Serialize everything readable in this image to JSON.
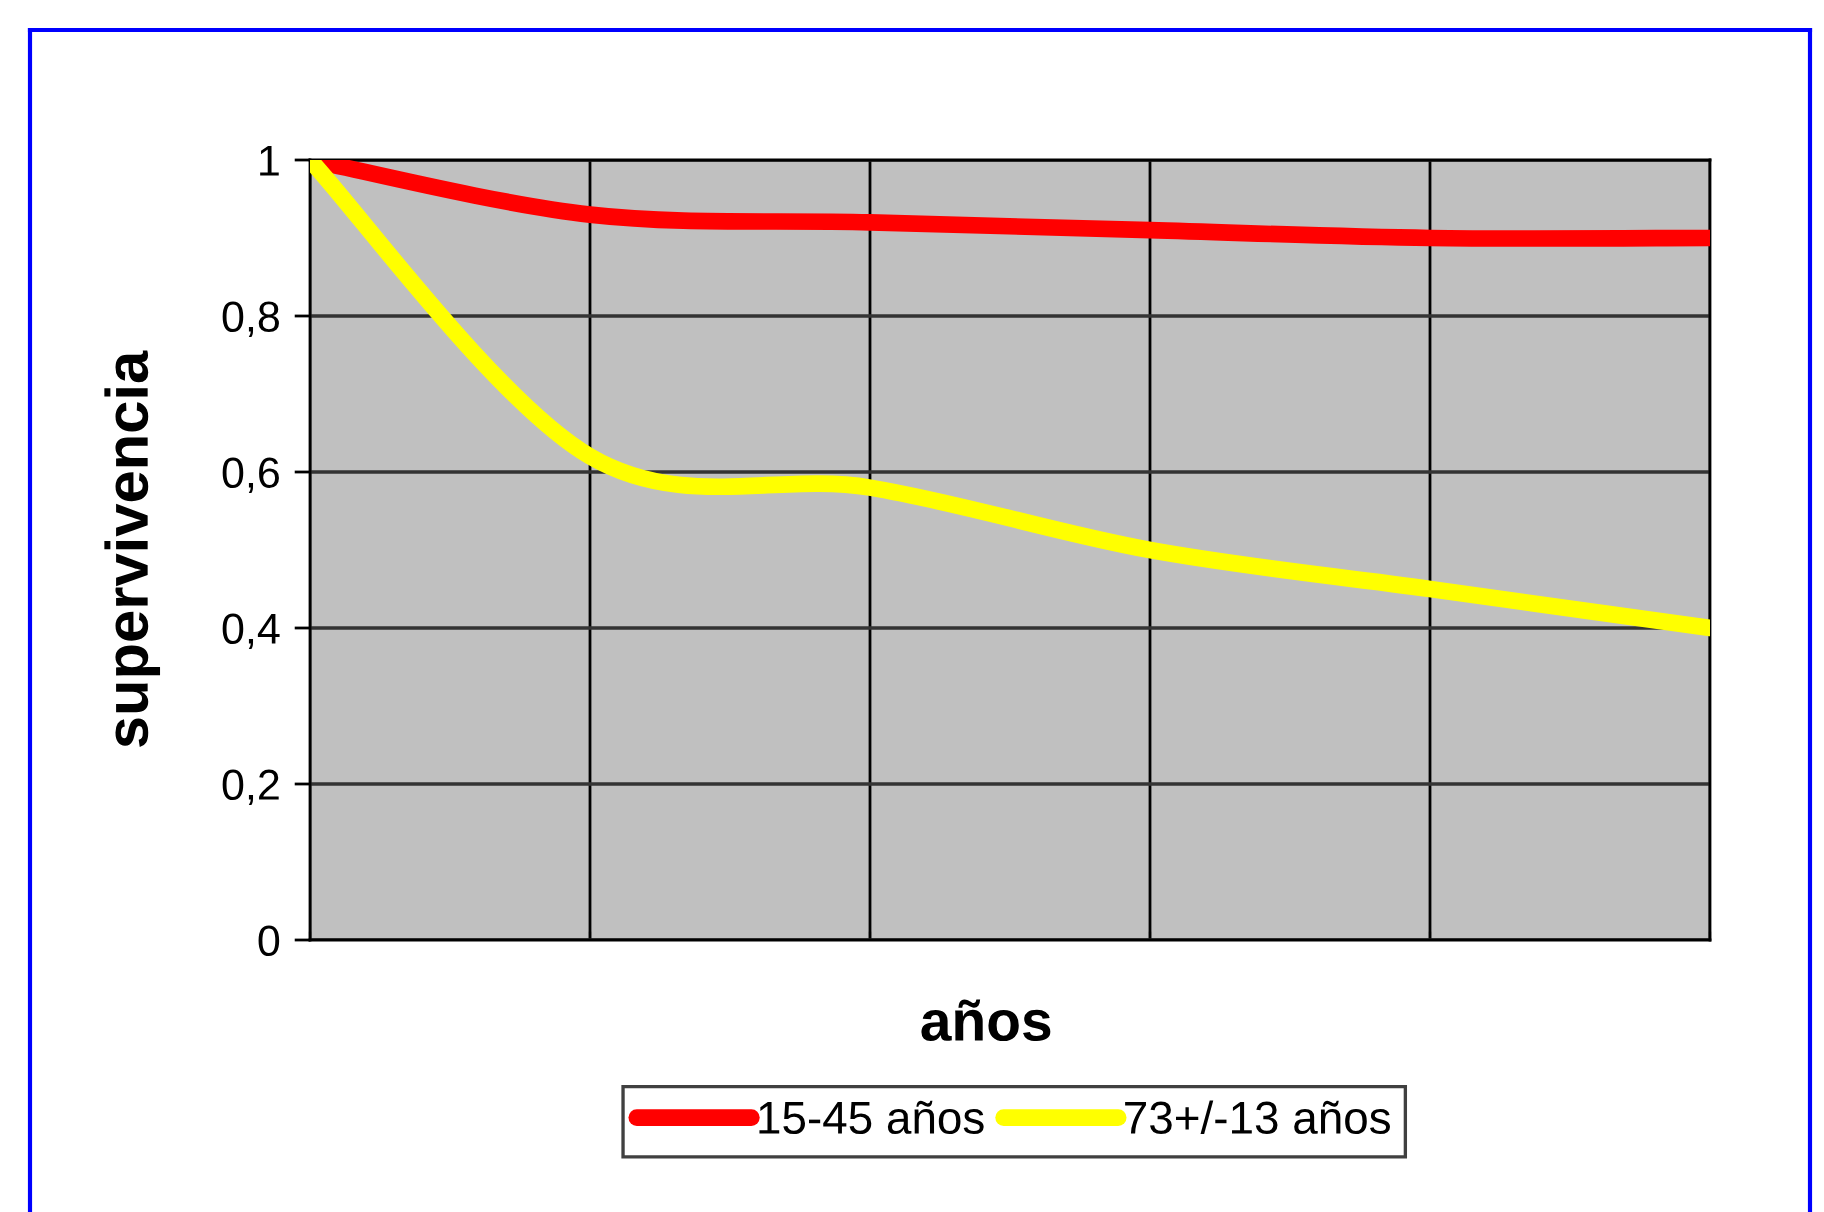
{
  "chart_data": {
    "type": "line",
    "xlabel": "años",
    "ylabel": "supervivencia",
    "categories": [
      null,
      null,
      null,
      null,
      null,
      null
    ],
    "series": [
      {
        "name": "15-45 años",
        "color": "#ff0000",
        "values": [
          1,
          0.93,
          0.92,
          0.91,
          0.9,
          0.9
        ]
      },
      {
        "name": "73+/-13 años",
        "color": "#ffff00",
        "values": [
          1,
          0.62,
          0.58,
          0.5,
          0.45,
          0.4
        ]
      }
    ],
    "ylim": [
      0,
      1
    ],
    "yticks": [
      0,
      {
        "value": 0.2,
        "label": "0,2"
      },
      {
        "value": 0.4,
        "label": "0,4"
      },
      {
        "value": 0.6,
        "label": "0,6"
      },
      {
        "value": 0.8,
        "label": "0,8"
      },
      1
    ],
    "grid": true,
    "legend": "bottom",
    "tick_labels": "y",
    "line_style": "solid"
  }
}
